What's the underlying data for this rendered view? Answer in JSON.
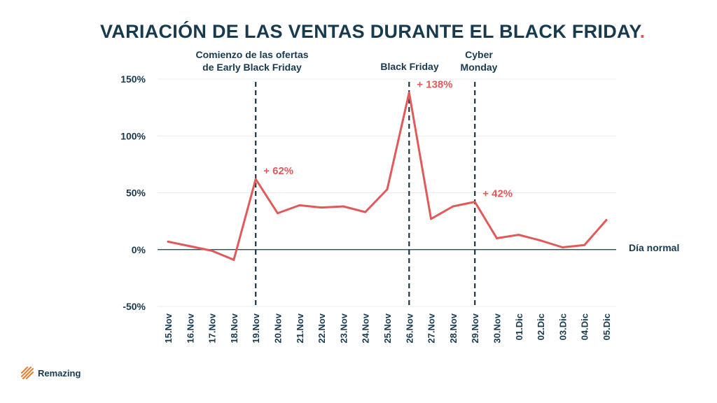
{
  "title": "VARIACIÓN DE LAS VENTAS DURANTE EL BLACK FRIDAY",
  "title_dot": ".",
  "brand": {
    "name": "Remazing"
  },
  "colors": {
    "line": "#e05a5a",
    "text": "#173a4f",
    "grid": "#e9ecef",
    "baseline": "#1c3545"
  },
  "chart_data": {
    "type": "line",
    "title": "VARIACIÓN DE LAS VENTAS DURANTE EL BLACK FRIDAY",
    "xlabel": "",
    "ylabel": "",
    "categories": [
      "15.Nov",
      "16.Nov",
      "17.Nov",
      "18.Nov",
      "19.Nov",
      "20.Nov",
      "21.Nov",
      "22.Nov",
      "23.Nov",
      "24.Nov",
      "25.Nov",
      "26.Nov",
      "27.Nov",
      "28.Nov",
      "29.Nov",
      "30.Nov",
      "01.Dic",
      "02.Dic",
      "03.Dic",
      "04.Dic",
      "05.Dic"
    ],
    "series": [
      {
        "values": [
          7,
          3,
          -1,
          -9,
          62,
          32,
          39,
          37,
          38,
          33,
          53,
          138,
          27,
          38,
          42,
          10,
          13,
          8,
          2,
          4,
          26
        ]
      }
    ],
    "ylim": [
      -50,
      150
    ],
    "yticks": [
      -50,
      0,
      50,
      100,
      150
    ],
    "ytick_labels": [
      "-50%",
      "0%",
      "50%",
      "100%",
      "150%"
    ],
    "grid": true,
    "baseline_label": "Día normal",
    "markers": [
      {
        "category": "19.Nov",
        "label_lines": [
          "Comienzo de las ofertas",
          "de Early Black Friday"
        ]
      },
      {
        "category": "26.Nov",
        "label_lines": [
          "Black Friday"
        ]
      },
      {
        "category": "29.Nov",
        "label_lines": [
          "Cyber",
          "Monday"
        ]
      }
    ],
    "annotations": [
      {
        "category": "19.Nov",
        "value": 62,
        "text": "+ 62%"
      },
      {
        "category": "26.Nov",
        "value": 138,
        "text": "+ 138%"
      },
      {
        "category": "29.Nov",
        "value": 42,
        "text": "+ 42%"
      }
    ]
  }
}
